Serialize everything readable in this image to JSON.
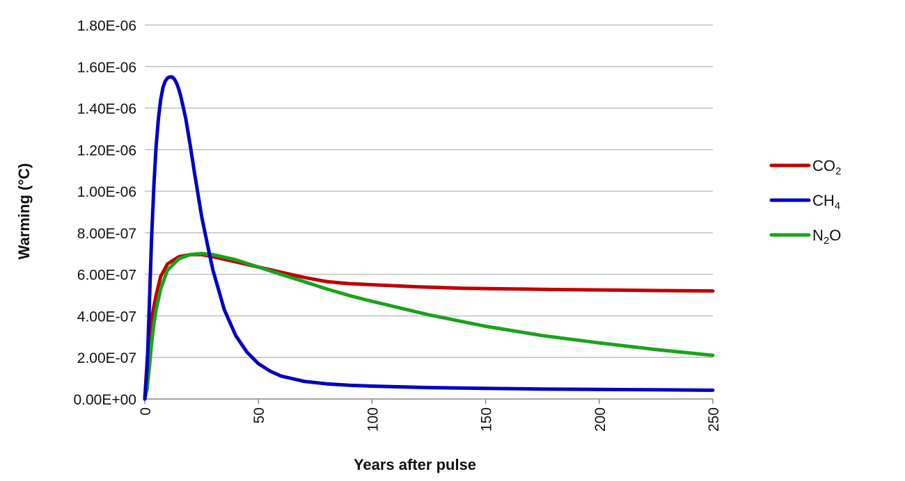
{
  "chart_data": {
    "type": "line",
    "title": "",
    "xlabel": "Years after pulse",
    "ylabel": "Warming (°C)",
    "xlim": [
      0,
      250
    ],
    "ylim": [
      0,
      1.8e-06
    ],
    "x_ticks": [
      "0",
      "50",
      "100",
      "150",
      "200",
      "250"
    ],
    "x_tick_values": [
      0,
      50,
      100,
      150,
      200,
      250
    ],
    "y_ticks": [
      "0.00E+00",
      "2.00E-07",
      "4.00E-07",
      "6.00E-07",
      "8.00E-07",
      "1.00E-06",
      "1.20E-06",
      "1.40E-06",
      "1.60E-06",
      "1.80E-06"
    ],
    "y_tick_values": [
      0,
      2e-07,
      4e-07,
      6e-07,
      8e-07,
      1e-06,
      1.2e-06,
      1.4e-06,
      1.6e-06,
      1.8e-06
    ],
    "grid": true,
    "legend": "right",
    "series": [
      {
        "name": "CO₂",
        "name_main": "CO",
        "name_sub": "2",
        "color": "#c00000",
        "points": [
          [
            0,
            0
          ],
          [
            1,
            1.8e-07
          ],
          [
            2,
            3.1e-07
          ],
          [
            3,
            3.9e-07
          ],
          [
            5,
            5e-07
          ],
          [
            7,
            5.9e-07
          ],
          [
            10,
            6.5e-07
          ],
          [
            15,
            6.85e-07
          ],
          [
            20,
            6.95e-07
          ],
          [
            25,
            6.95e-07
          ],
          [
            30,
            6.85e-07
          ],
          [
            40,
            6.6e-07
          ],
          [
            50,
            6.35e-07
          ],
          [
            60,
            6.1e-07
          ],
          [
            70,
            5.85e-07
          ],
          [
            80,
            5.65e-07
          ],
          [
            90,
            5.55e-07
          ],
          [
            100,
            5.5e-07
          ],
          [
            120,
            5.4e-07
          ],
          [
            140,
            5.33e-07
          ],
          [
            160,
            5.3e-07
          ],
          [
            180,
            5.27e-07
          ],
          [
            200,
            5.25e-07
          ],
          [
            225,
            5.22e-07
          ],
          [
            250,
            5.2e-07
          ]
        ]
      },
      {
        "name": "CH₄",
        "name_main": "CH",
        "name_sub": "4",
        "color": "#0000c0",
        "points": [
          [
            0,
            0
          ],
          [
            1,
            1.5e-07
          ],
          [
            2,
            4.5e-07
          ],
          [
            3,
            7.8e-07
          ],
          [
            4,
            1.03e-06
          ],
          [
            5,
            1.22e-06
          ],
          [
            6,
            1.35e-06
          ],
          [
            7,
            1.44e-06
          ],
          [
            8,
            1.5e-06
          ],
          [
            9,
            1.53e-06
          ],
          [
            10,
            1.545e-06
          ],
          [
            11,
            1.55e-06
          ],
          [
            12,
            1.55e-06
          ],
          [
            13,
            1.54e-06
          ],
          [
            14,
            1.52e-06
          ],
          [
            15,
            1.49e-06
          ],
          [
            16,
            1.45e-06
          ],
          [
            18,
            1.35e-06
          ],
          [
            20,
            1.22e-06
          ],
          [
            22,
            1.08e-06
          ],
          [
            25,
            8.8e-07
          ],
          [
            28,
            7.2e-07
          ],
          [
            30,
            6.2e-07
          ],
          [
            35,
            4.3e-07
          ],
          [
            40,
            3.05e-07
          ],
          [
            45,
            2.25e-07
          ],
          [
            50,
            1.7e-07
          ],
          [
            55,
            1.35e-07
          ],
          [
            60,
            1.1e-07
          ],
          [
            70,
            8.5e-08
          ],
          [
            80,
            7.3e-08
          ],
          [
            90,
            6.6e-08
          ],
          [
            100,
            6.2e-08
          ],
          [
            125,
            5.5e-08
          ],
          [
            150,
            5.1e-08
          ],
          [
            175,
            4.8e-08
          ],
          [
            200,
            4.6e-08
          ],
          [
            225,
            4.4e-08
          ],
          [
            250,
            4.2e-08
          ]
        ]
      },
      {
        "name": "N₂O",
        "name_main": "N",
        "name_sub": "2",
        "name_tail": "O",
        "color": "#1aa31a",
        "points": [
          [
            0,
            0
          ],
          [
            1,
            5e-08
          ],
          [
            2,
            1.5e-07
          ],
          [
            3,
            2.7e-07
          ],
          [
            4,
            3.6e-07
          ],
          [
            5,
            4.3e-07
          ],
          [
            7,
            5.3e-07
          ],
          [
            10,
            6.2e-07
          ],
          [
            15,
            6.75e-07
          ],
          [
            20,
            6.95e-07
          ],
          [
            25,
            7e-07
          ],
          [
            30,
            6.95e-07
          ],
          [
            40,
            6.7e-07
          ],
          [
            50,
            6.35e-07
          ],
          [
            60,
            6e-07
          ],
          [
            70,
            5.65e-07
          ],
          [
            80,
            5.3e-07
          ],
          [
            90,
            4.98e-07
          ],
          [
            100,
            4.7e-07
          ],
          [
            125,
            4.05e-07
          ],
          [
            150,
            3.5e-07
          ],
          [
            175,
            3.05e-07
          ],
          [
            200,
            2.7e-07
          ],
          [
            225,
            2.38e-07
          ],
          [
            250,
            2.1e-07
          ]
        ]
      }
    ]
  }
}
